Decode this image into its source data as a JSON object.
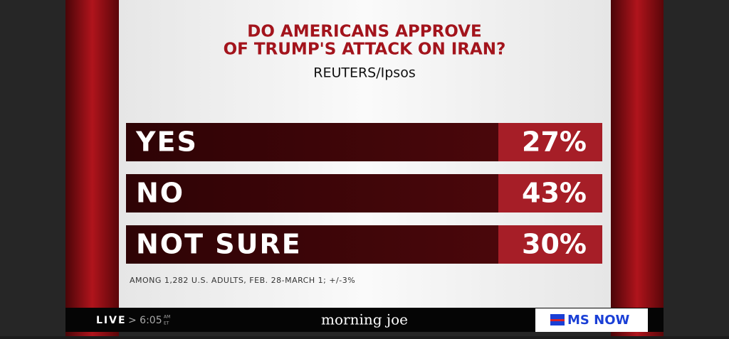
{
  "graphic": {
    "title_lines": [
      "DO AMERICANS APPROVE",
      "OF TRUMP'S ATTACK ON IRAN?"
    ],
    "source": "REUTERS/Ipsos",
    "rows": [
      {
        "label": "YES",
        "value": "27%"
      },
      {
        "label": "NO",
        "value": "43%"
      },
      {
        "label": "NOT SURE",
        "value": "30%"
      }
    ],
    "footnote": "AMONG 1,282 U.S. ADULTS, FEB. 28-MARCH 1; +/-3%"
  },
  "ticker": {
    "live": "LIVE",
    "time": "> 6:05",
    "am": "AM",
    "et": "ET",
    "show": "morning joe",
    "network": "MS NOW"
  }
}
